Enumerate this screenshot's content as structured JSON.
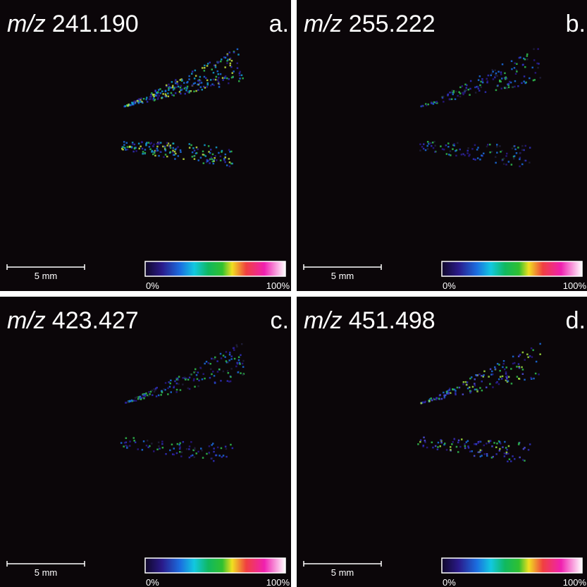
{
  "panels": [
    {
      "mz_prefix": "m/z",
      "mz": "241.190",
      "letter": "a.",
      "scale_bar": "5 mm",
      "colorbar": {
        "min": "0%",
        "max": "100%"
      }
    },
    {
      "mz_prefix": "m/z",
      "mz": "255.222",
      "letter": "b.",
      "scale_bar": "5 mm",
      "colorbar": {
        "min": "0%",
        "max": "100%"
      }
    },
    {
      "mz_prefix": "m/z",
      "mz": "423.427",
      "letter": "c.",
      "scale_bar": "5 mm",
      "colorbar": {
        "min": "0%",
        "max": "100%"
      }
    },
    {
      "mz_prefix": "m/z",
      "mz": "451.498",
      "letter": "d.",
      "scale_bar": "5 mm",
      "colorbar": {
        "min": "0%",
        "max": "100%"
      }
    }
  ]
}
